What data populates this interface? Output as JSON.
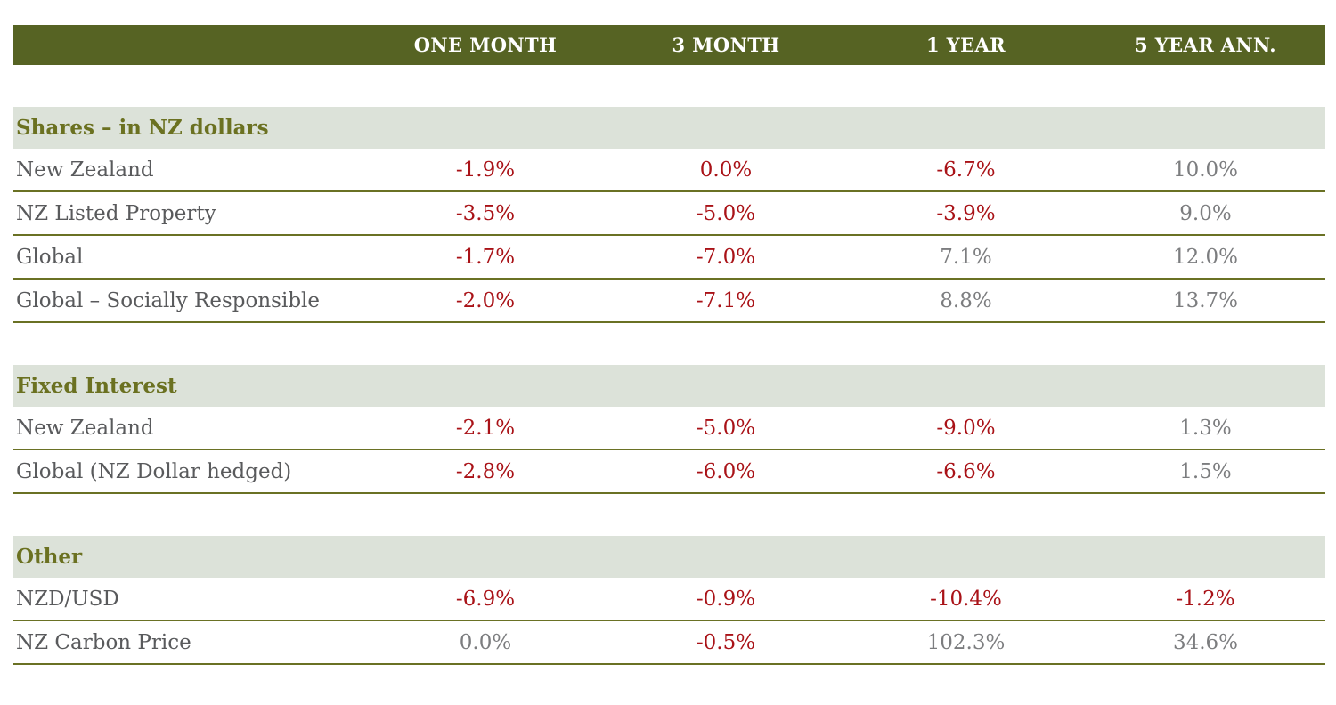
{
  "colors": {
    "header_bar_bg": "#566323",
    "header_bar_text": "#ffffff",
    "section_band_bg": "#dce2d9",
    "section_title_text": "#6b7121",
    "row_label_text": "#595a5c",
    "negative_value": "#a91217",
    "positive_value": "#7c7d7f",
    "row_separator": "#6a7124"
  },
  "table": {
    "columns": [
      "ONE MONTH",
      "3 MONTH",
      "1 YEAR",
      "5 YEAR ANN."
    ],
    "sections": [
      {
        "title": "Shares – in NZ dollars",
        "rows": [
          {
            "label": "New Zealand",
            "values": [
              {
                "text": "-1.9%",
                "negative": true
              },
              {
                "text": "0.0%",
                "negative": true
              },
              {
                "text": "-6.7%",
                "negative": true
              },
              {
                "text": "10.0%",
                "negative": false
              }
            ]
          },
          {
            "label": "NZ Listed Property",
            "values": [
              {
                "text": "-3.5%",
                "negative": true
              },
              {
                "text": "-5.0%",
                "negative": true
              },
              {
                "text": "-3.9%",
                "negative": true
              },
              {
                "text": "9.0%",
                "negative": false
              }
            ]
          },
          {
            "label": "Global",
            "values": [
              {
                "text": "-1.7%",
                "negative": true
              },
              {
                "text": "-7.0%",
                "negative": true
              },
              {
                "text": "7.1%",
                "negative": false
              },
              {
                "text": "12.0%",
                "negative": false
              }
            ]
          },
          {
            "label": "Global – Socially Responsible",
            "values": [
              {
                "text": "-2.0%",
                "negative": true
              },
              {
                "text": "-7.1%",
                "negative": true
              },
              {
                "text": "8.8%",
                "negative": false
              },
              {
                "text": "13.7%",
                "negative": false
              }
            ]
          }
        ]
      },
      {
        "title": "Fixed Interest",
        "rows": [
          {
            "label": "New Zealand",
            "values": [
              {
                "text": "-2.1%",
                "negative": true
              },
              {
                "text": "-5.0%",
                "negative": true
              },
              {
                "text": "-9.0%",
                "negative": true
              },
              {
                "text": "1.3%",
                "negative": false
              }
            ]
          },
          {
            "label": "Global (NZ Dollar hedged)",
            "values": [
              {
                "text": "-2.8%",
                "negative": true
              },
              {
                "text": "-6.0%",
                "negative": true
              },
              {
                "text": "-6.6%",
                "negative": true
              },
              {
                "text": "1.5%",
                "negative": false
              }
            ]
          }
        ]
      },
      {
        "title": "Other",
        "rows": [
          {
            "label": "NZD/USD",
            "values": [
              {
                "text": "-6.9%",
                "negative": true
              },
              {
                "text": "-0.9%",
                "negative": true
              },
              {
                "text": "-10.4%",
                "negative": true
              },
              {
                "text": "-1.2%",
                "negative": true
              }
            ]
          },
          {
            "label": "NZ Carbon Price",
            "values": [
              {
                "text": "0.0%",
                "negative": false
              },
              {
                "text": "-0.5%",
                "negative": true
              },
              {
                "text": "102.3%",
                "negative": false
              },
              {
                "text": "34.6%",
                "negative": false
              }
            ]
          }
        ]
      }
    ]
  },
  "chart_data": {
    "type": "table",
    "columns": [
      "",
      "ONE MONTH",
      "3 MONTH",
      "1 YEAR",
      "5 YEAR ANN."
    ],
    "sections": [
      {
        "title": "Shares – in NZ dollars",
        "rows": [
          {
            "label": "New Zealand",
            "one_month": -1.9,
            "three_month": 0.0,
            "one_year": -6.7,
            "five_year_ann": 10.0
          },
          {
            "label": "NZ Listed Property",
            "one_month": -3.5,
            "three_month": -5.0,
            "one_year": -3.9,
            "five_year_ann": 9.0
          },
          {
            "label": "Global",
            "one_month": -1.7,
            "three_month": -7.0,
            "one_year": 7.1,
            "five_year_ann": 12.0
          },
          {
            "label": "Global – Socially Responsible",
            "one_month": -2.0,
            "three_month": -7.1,
            "one_year": 8.8,
            "five_year_ann": 13.7
          }
        ]
      },
      {
        "title": "Fixed Interest",
        "rows": [
          {
            "label": "New Zealand",
            "one_month": -2.1,
            "three_month": -5.0,
            "one_year": -9.0,
            "five_year_ann": 1.3
          },
          {
            "label": "Global (NZ Dollar hedged)",
            "one_month": -2.8,
            "three_month": -6.0,
            "one_year": -6.6,
            "five_year_ann": 1.5
          }
        ]
      },
      {
        "title": "Other",
        "rows": [
          {
            "label": "NZD/USD",
            "one_month": -6.9,
            "three_month": -0.9,
            "one_year": -10.4,
            "five_year_ann": -1.2
          },
          {
            "label": "NZ Carbon Price",
            "one_month": 0.0,
            "three_month": -0.5,
            "one_year": 102.3,
            "five_year_ann": 34.6
          }
        ]
      }
    ],
    "units": "percent",
    "notes": "Negative returns shown in dark red; non-negative in gray"
  }
}
